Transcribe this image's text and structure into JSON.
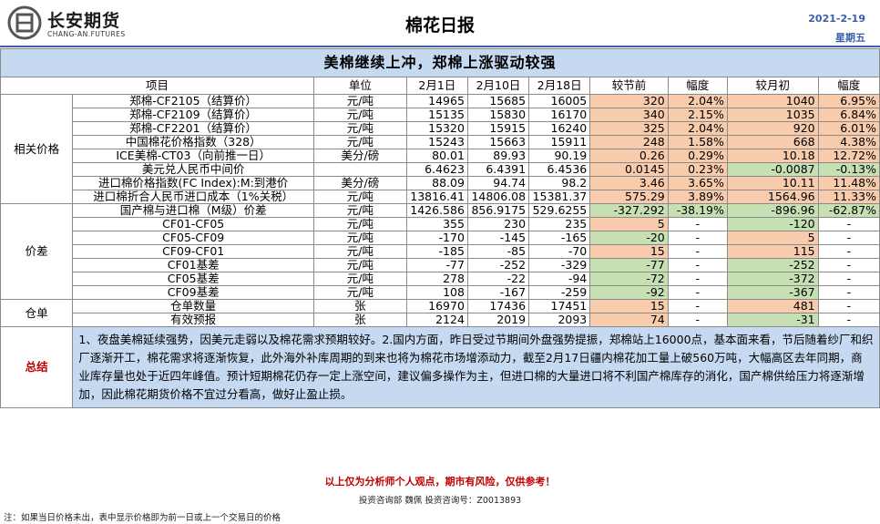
{
  "header": {
    "company_cn": "长安期货",
    "company_en": "CHANG-AN.FUTURES",
    "title": "棉花日报",
    "date": "2021-2-19",
    "weekday": "星期五"
  },
  "banner": "美棉继续上冲，郑棉上涨驱动较强",
  "columns": [
    "项目",
    "单位",
    "2月1日",
    "2月10日",
    "2月18日",
    "较节前",
    "幅度",
    "较月初",
    "幅度"
  ],
  "sections": [
    {
      "label": "相关价格",
      "rows": [
        {
          "name": "郑棉-CF2105（结算价）",
          "unit": "元/吨",
          "v1": "14965",
          "v2": "15685",
          "v3": "16005",
          "c1": "320",
          "p1": "2.04%",
          "c2": "1040",
          "p2": "6.95%",
          "tone": "or"
        },
        {
          "name": "郑棉-CF2109（结算价）",
          "unit": "元/吨",
          "v1": "15135",
          "v2": "15830",
          "v3": "16170",
          "c1": "340",
          "p1": "2.15%",
          "c2": "1035",
          "p2": "6.84%",
          "tone": "or"
        },
        {
          "name": "郑棉-CF2201（结算价）",
          "unit": "元/吨",
          "v1": "15320",
          "v2": "15915",
          "v3": "16240",
          "c1": "325",
          "p1": "2.04%",
          "c2": "920",
          "p2": "6.01%",
          "tone": "or"
        },
        {
          "name": "中国棉花价格指数（328）",
          "unit": "元/吨",
          "v1": "15243",
          "v2": "15663",
          "v3": "15911",
          "c1": "248",
          "p1": "1.58%",
          "c2": "668",
          "p2": "4.38%",
          "tone": "or"
        },
        {
          "name": "ICE美棉-CT03（向前推一日）",
          "unit": "美分/磅",
          "v1": "80.01",
          "v2": "89.93",
          "v3": "90.19",
          "c1": "0.26",
          "p1": "0.29%",
          "c2": "10.18",
          "p2": "12.72%",
          "tone": "or"
        },
        {
          "name": "美元兑人民币中间价",
          "unit": "",
          "v1": "6.4623",
          "v2": "6.4391",
          "v3": "6.4536",
          "c1": "0.0145",
          "p1": "0.23%",
          "c2": "-0.0087",
          "p2": "-0.13%",
          "tone": "mix"
        },
        {
          "name": "进口棉价格指数(FC Index):M:到港价",
          "unit": "美分/磅",
          "v1": "88.09",
          "v2": "94.74",
          "v3": "98.2",
          "c1": "3.46",
          "p1": "3.65%",
          "c2": "10.11",
          "p2": "11.48%",
          "tone": "or"
        },
        {
          "name": "进口棉折合人民币进口成本（1%关税）",
          "unit": "元/吨",
          "v1": "13816.41",
          "v2": "14806.08",
          "v3": "15381.37",
          "c1": "575.29",
          "p1": "3.89%",
          "c2": "1564.96",
          "p2": "11.33%",
          "tone": "or"
        }
      ]
    },
    {
      "label": "价差",
      "rows": [
        {
          "name": "国产棉与进口棉（M级）价差",
          "unit": "元/吨",
          "v1": "1426.586",
          "v2": "856.9175",
          "v3": "529.6255",
          "c1": "-327.292",
          "p1": "-38.19%",
          "c2": "-896.96",
          "p2": "-62.87%",
          "tone": "gr"
        },
        {
          "name": "CF01-CF05",
          "unit": "元/吨",
          "v1": "355",
          "v2": "230",
          "v3": "235",
          "c1": "5",
          "p1": "-",
          "c2": "-120",
          "p2": "-",
          "tone": "or-gr"
        },
        {
          "name": "CF05-CF09",
          "unit": "元/吨",
          "v1": "-170",
          "v2": "-145",
          "v3": "-165",
          "c1": "-20",
          "p1": "-",
          "c2": "5",
          "p2": "-",
          "tone": "gr-or"
        },
        {
          "name": "CF09-CF01",
          "unit": "元/吨",
          "v1": "-185",
          "v2": "-85",
          "v3": "-70",
          "c1": "15",
          "p1": "-",
          "c2": "115",
          "p2": "-",
          "tone": "or-or"
        },
        {
          "name": "CF01基差",
          "unit": "元/吨",
          "v1": "-77",
          "v2": "-252",
          "v3": "-329",
          "c1": "-77",
          "p1": "-",
          "c2": "-252",
          "p2": "-",
          "tone": "gr-gr"
        },
        {
          "name": "CF05基差",
          "unit": "元/吨",
          "v1": "278",
          "v2": "-22",
          "v3": "-94",
          "c1": "-72",
          "p1": "-",
          "c2": "-372",
          "p2": "-",
          "tone": "gr-gr"
        },
        {
          "name": "CF09基差",
          "unit": "元/吨",
          "v1": "108",
          "v2": "-167",
          "v3": "-259",
          "c1": "-92",
          "p1": "-",
          "c2": "-367",
          "p2": "-",
          "tone": "gr-gr"
        }
      ]
    },
    {
      "label": "仓单",
      "rows": [
        {
          "name": "仓单数量",
          "unit": "张",
          "v1": "16970",
          "v2": "17436",
          "v3": "17451",
          "c1": "15",
          "p1": "-",
          "c2": "481",
          "p2": "-",
          "tone": "or-or"
        },
        {
          "name": "有效预报",
          "unit": "张",
          "v1": "2124",
          "v2": "2019",
          "v3": "2093",
          "c1": "74",
          "p1": "-",
          "c2": "-31",
          "p2": "-",
          "tone": "or-gr"
        }
      ]
    }
  ],
  "summary": {
    "label": "总结",
    "text": "1、夜盘美棉延续强势，因美元走弱以及棉花需求预期较好。2.国内方面，昨日受过节期间外盘强势提振，郑棉站上16000点，基本面来看，节后随着纱厂和织厂逐渐开工，棉花需求将逐渐恢复，此外海外补库周期的到来也将为棉花市场增添动力，截至2月17日疆内棉花加工量上破560万吨，大幅高区去年同期，商业库存量也处于近四年峰值。预计短期棉花仍存一定上涨空间，建议偏多操作为主，但进口棉的大量进口将不利国产棉库存的消化，国产棉供给压力将逐渐增加，因此棉花期货价格不宜过分看高，做好止盈止损。"
  },
  "footer": {
    "disclaimer": "以上仅为分析师个人观点，期市有风险，仅供参考！",
    "advisor": "投资咨询部  魏佩    投资咨询号：Z0013893",
    "note": "注：如果当日价格未出，表中显示价格即为前一日或上一个交易日的价格"
  },
  "colors": {
    "accent": "#3a5fa8",
    "banner_bg": "#c5d9f1",
    "up": "#f8cbad",
    "down": "#c6e0b4",
    "summary_label": "#c00000"
  }
}
